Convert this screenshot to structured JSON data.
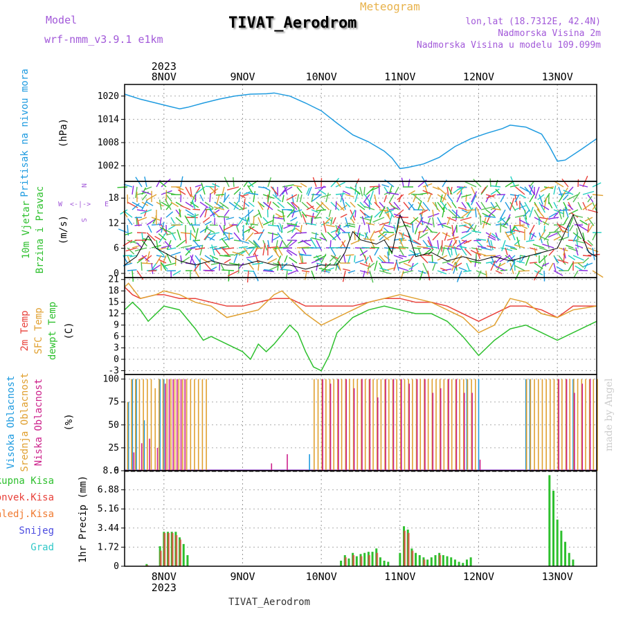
{
  "header": {
    "model_label": "Model",
    "model_name": "wrf-nmm_v3.9.1 e1km",
    "meteogram_label": "Meteogram",
    "station_title": "TIVAT_Aerodrom",
    "coords": "lon,lat (18.7312E, 42.4N)",
    "elevation": "Nadmorska Visina 2m",
    "model_elevation": "Nadmorska Visina u modelu 109.099m",
    "watermark": "made by Angel",
    "footer_station": "TIVAT_Aerodrom"
  },
  "colors": {
    "pressure": "#1e9be0",
    "temp2m": "#e8403a",
    "sfc": "#e0a030",
    "dew": "#2ec02e",
    "high_cloud": "#1e9be0",
    "mid_cloud": "#e0a030",
    "low_cloud": "#cc1f8a",
    "total_rain": "#2ec02e",
    "conv_rain": "#e8403a"
  },
  "chart_data": [
    {
      "type": "line",
      "id": "pressure",
      "ylabel": [
        "Pritisak na nivou mora",
        "(hPa)"
      ],
      "yticks": [
        "1020",
        "1014",
        "1008",
        "1002"
      ],
      "ylim": [
        998,
        1023
      ],
      "top_year": "2023",
      "x_ticks": [
        "8NOV",
        "9NOV",
        "10NOV",
        "11NOV",
        "12NOV",
        "13NOV"
      ],
      "x_days": [
        0,
        1,
        2,
        3,
        4,
        5
      ],
      "xlim": [
        -0.5,
        5.5
      ],
      "series": [
        {
          "x": [
            -0.5,
            -0.3,
            -0.1,
            0.1,
            0.2,
            0.3,
            0.5,
            0.7,
            0.9,
            1.1,
            1.3,
            1.4,
            1.6,
            1.8,
            2.0,
            2.2,
            2.4,
            2.6,
            2.8,
            2.9,
            3.0,
            3.1,
            3.3,
            3.5,
            3.7,
            3.9,
            4.1,
            4.3,
            4.4,
            4.6,
            4.8,
            4.9,
            5.0,
            5.1,
            5.3,
            5.5
          ],
          "y": [
            1020.5,
            1019.2,
            1018.2,
            1017.2,
            1016.7,
            1017.1,
            1018.2,
            1019.2,
            1020.0,
            1020.5,
            1020.6,
            1020.8,
            1020.0,
            1018.2,
            1016.2,
            1013.0,
            1010.0,
            1008.2,
            1005.8,
            1004.0,
            1001.3,
            1001.6,
            1002.5,
            1004.2,
            1007.0,
            1009.0,
            1010.4,
            1011.6,
            1012.5,
            1012.0,
            1010.2,
            1007.0,
            1003.2,
            1003.5,
            1006.2,
            1009.0
          ]
        }
      ]
    },
    {
      "type": "line",
      "id": "wind",
      "ylabel": [
        "10m Vjetar",
        "Brzina i Pravac",
        "(m/s)"
      ],
      "compass": {
        "n": "N",
        "s": "S",
        "w": "W",
        "e": "E"
      },
      "yticks": [
        "18",
        "12",
        "6",
        "0"
      ],
      "ylim": [
        -1,
        22
      ],
      "series": [
        {
          "name": "speed",
          "x": [
            -0.5,
            -0.35,
            -0.2,
            -0.1,
            0.0,
            0.2,
            0.4,
            0.6,
            0.8,
            1.0,
            1.2,
            1.4,
            1.6,
            1.8,
            2.0,
            2.2,
            2.3,
            2.4,
            2.5,
            2.7,
            2.8,
            2.9,
            3.0,
            3.1,
            3.2,
            3.4,
            3.6,
            3.8,
            4.0,
            4.2,
            4.4,
            4.6,
            4.8,
            5.0,
            5.2,
            5.4,
            5.5
          ],
          "y": [
            2,
            4,
            9,
            6,
            5,
            3,
            2,
            3,
            2,
            2,
            3,
            2,
            2,
            1,
            2,
            2,
            5,
            10,
            8,
            7,
            8,
            5,
            14,
            10,
            4,
            5,
            3,
            4,
            3,
            4,
            3,
            4,
            5,
            6,
            14,
            5,
            4
          ]
        }
      ]
    },
    {
      "type": "line",
      "id": "temperature",
      "ylabel": [
        "2m Temp",
        "SFC Temp",
        "dewpt Temp",
        "(C)"
      ],
      "yticks": [
        "21",
        "18",
        "15",
        "12",
        "9",
        "6",
        "3",
        "0",
        "-3"
      ],
      "ylim": [
        -4,
        21.5
      ],
      "series": [
        {
          "name": "2m Temp",
          "x": [
            -0.5,
            -0.4,
            -0.3,
            -0.1,
            0.0,
            0.2,
            0.4,
            0.6,
            0.8,
            1.0,
            1.2,
            1.4,
            1.6,
            1.8,
            2.0,
            2.2,
            2.4,
            2.6,
            2.8,
            3.0,
            3.2,
            3.4,
            3.6,
            3.8,
            4.0,
            4.2,
            4.4,
            4.6,
            4.8,
            5.0,
            5.2,
            5.5
          ],
          "y": [
            19,
            17,
            16,
            17,
            17,
            16,
            16,
            15,
            14,
            14,
            15,
            16,
            16,
            14,
            14,
            14,
            14,
            15,
            16,
            16,
            15,
            15,
            14,
            12,
            10,
            12,
            14,
            14,
            13,
            11,
            14,
            14
          ]
        },
        {
          "name": "SFC Temp",
          "x": [
            -0.5,
            -0.45,
            -0.3,
            -0.1,
            0.0,
            0.2,
            0.4,
            0.6,
            0.8,
            1.0,
            1.2,
            1.4,
            1.5,
            1.6,
            1.8,
            2.0,
            2.2,
            2.4,
            2.6,
            2.8,
            3.0,
            3.2,
            3.4,
            3.6,
            3.8,
            4.0,
            4.2,
            4.4,
            4.6,
            4.8,
            5.0,
            5.2,
            5.5
          ],
          "y": [
            19,
            20,
            16,
            17,
            18,
            17,
            15,
            14,
            11,
            12,
            13,
            17,
            18,
            16,
            12,
            9,
            11,
            13,
            15,
            16,
            17,
            16,
            15,
            13,
            11,
            7,
            9,
            16,
            15,
            12,
            11,
            13,
            14
          ]
        },
        {
          "name": "dewpt Temp",
          "x": [
            -0.5,
            -0.4,
            -0.3,
            -0.2,
            -0.1,
            0.0,
            0.2,
            0.4,
            0.5,
            0.6,
            0.8,
            1.0,
            1.1,
            1.2,
            1.3,
            1.4,
            1.6,
            1.7,
            1.8,
            1.9,
            2.0,
            2.1,
            2.2,
            2.4,
            2.6,
            2.8,
            3.0,
            3.2,
            3.4,
            3.6,
            3.8,
            4.0,
            4.2,
            4.4,
            4.6,
            4.8,
            5.0,
            5.2,
            5.5
          ],
          "y": [
            13,
            15,
            13,
            10,
            12,
            14,
            13,
            8,
            5,
            6,
            4,
            2,
            0,
            4,
            2,
            4,
            9,
            7,
            2,
            -2,
            -3,
            1,
            7,
            11,
            13,
            14,
            13,
            12,
            12,
            10,
            6,
            1,
            5,
            8,
            9,
            7,
            5,
            7,
            10
          ]
        }
      ]
    },
    {
      "type": "bar",
      "id": "clouds",
      "ylabel": [
        "Visoka Oblacnost",
        "Srednja Oblacnost",
        "Niska Oblacnost",
        "(%)"
      ],
      "yticks": [
        "100",
        "75",
        "50",
        "25",
        "0"
      ],
      "ylim": [
        0,
        105
      ],
      "series": [
        {
          "name": "Visoka Oblacnost",
          "x": [
            -0.45,
            -0.4,
            -0.35,
            -0.25,
            -0.05,
            0.0,
            1.85,
            3.85,
            4.0,
            4.6,
            4.65,
            5.2
          ],
          "y": [
            75,
            100,
            100,
            55,
            100,
            100,
            18,
            100,
            100,
            100,
            100,
            100
          ]
        },
        {
          "name": "Srednja Oblacnost",
          "x": [
            -0.47,
            -0.42,
            -0.37,
            -0.32,
            -0.27,
            -0.22,
            -0.17,
            -0.12,
            -0.07,
            -0.02,
            0.03,
            0.08,
            0.13,
            0.18,
            0.23,
            0.28,
            0.33,
            0.38,
            0.43,
            0.48,
            0.53,
            1.9,
            1.95,
            2.0,
            2.05,
            2.1,
            2.15,
            2.2,
            2.25,
            2.3,
            2.35,
            2.4,
            2.45,
            2.5,
            2.55,
            2.6,
            2.65,
            2.7,
            2.75,
            2.8,
            2.85,
            2.9,
            2.95,
            3.0,
            3.05,
            3.1,
            3.15,
            3.2,
            3.25,
            3.3,
            3.35,
            3.4,
            3.45,
            3.5,
            3.55,
            3.6,
            3.65,
            3.7,
            3.75,
            3.8,
            3.85,
            3.9,
            3.95,
            4.6,
            4.65,
            4.7,
            4.75,
            4.8,
            4.85,
            4.9,
            4.95,
            5.0,
            5.05,
            5.1,
            5.15,
            5.2,
            5.25,
            5.3,
            5.35,
            5.4,
            5.45,
            5.5
          ],
          "y": [
            75,
            100,
            100,
            100,
            100,
            100,
            100,
            90,
            100,
            100,
            100,
            100,
            100,
            100,
            100,
            100,
            100,
            100,
            100,
            100,
            100,
            100,
            100,
            100,
            100,
            100,
            100,
            100,
            100,
            100,
            100,
            100,
            100,
            100,
            100,
            100,
            100,
            100,
            100,
            100,
            100,
            100,
            100,
            100,
            100,
            100,
            100,
            100,
            100,
            100,
            100,
            100,
            100,
            100,
            100,
            100,
            100,
            100,
            100,
            100,
            100,
            100,
            100,
            100,
            100,
            100,
            100,
            100,
            100,
            100,
            100,
            100,
            100,
            100,
            100,
            100,
            100,
            100,
            100,
            100,
            100,
            100
          ]
        },
        {
          "name": "Niska Oblacnost",
          "x": [
            -0.4,
            -0.3,
            -0.2,
            -0.1,
            0.0,
            0.05,
            0.1,
            0.15,
            0.2,
            0.25,
            1.35,
            1.55,
            2.0,
            2.1,
            2.2,
            2.3,
            2.4,
            2.5,
            2.6,
            2.7,
            2.8,
            2.9,
            3.0,
            3.1,
            3.2,
            3.3,
            3.4,
            3.5,
            3.6,
            3.7,
            3.8,
            3.9,
            4.0,
            5.0,
            5.1,
            5.2,
            5.3,
            5.4
          ],
          "y": [
            20,
            30,
            35,
            25,
            95,
            100,
            100,
            100,
            100,
            100,
            8,
            18,
            100,
            95,
            100,
            100,
            90,
            100,
            100,
            80,
            100,
            100,
            100,
            95,
            100,
            100,
            85,
            90,
            100,
            100,
            85,
            85,
            12,
            100,
            100,
            85,
            95,
            100
          ]
        }
      ]
    },
    {
      "type": "bar",
      "id": "precip",
      "ylabel": [
        "1hr Precip (mm)"
      ],
      "legend": [
        "Ukupna Kisa",
        "Konvek.Kisa",
        "Zaledj.Kisa",
        "Snijeg",
        "Grad"
      ],
      "legend_colors": [
        "#2ec02e",
        "#e8403a",
        "#f07a30",
        "#4a4ae0",
        "#30c8c8"
      ],
      "yticks": [
        "8.6",
        "6.88",
        "5.16",
        "3.44",
        "1.72",
        "0"
      ],
      "ylim": [
        0,
        8.6
      ],
      "bottom_year": "2023",
      "series": [
        {
          "name": "Ukupna Kisa",
          "x": [
            -0.22,
            -0.05,
            0.0,
            0.05,
            0.1,
            0.15,
            0.2,
            0.25,
            0.3,
            2.25,
            2.3,
            2.35,
            2.4,
            2.45,
            2.5,
            2.55,
            2.6,
            2.65,
            2.7,
            2.75,
            2.8,
            2.85,
            3.0,
            3.05,
            3.1,
            3.15,
            3.2,
            3.25,
            3.3,
            3.35,
            3.4,
            3.45,
            3.5,
            3.55,
            3.6,
            3.65,
            3.7,
            3.75,
            3.8,
            3.85,
            3.9,
            4.9,
            4.95,
            5.0,
            5.05,
            5.1,
            5.15,
            5.2
          ],
          "y": [
            0.2,
            1.8,
            3.1,
            3.1,
            3.1,
            3.1,
            2.6,
            2.0,
            1.0,
            0.5,
            1.0,
            0.7,
            1.2,
            0.9,
            1.1,
            1.2,
            1.3,
            1.3,
            1.6,
            0.8,
            0.5,
            0.4,
            1.2,
            3.6,
            3.3,
            1.6,
            1.2,
            1.0,
            0.8,
            0.6,
            0.8,
            1.0,
            1.2,
            1.0,
            0.9,
            0.8,
            0.6,
            0.4,
            0.3,
            0.6,
            0.8,
            8.2,
            6.8,
            4.2,
            3.2,
            2.2,
            1.2,
            0.6
          ]
        },
        {
          "name": "Konvek.Kisa",
          "x": [
            -0.22,
            -0.05,
            0.0,
            0.05,
            0.1,
            0.15,
            0.2,
            2.3,
            2.4,
            2.5,
            2.6,
            2.7,
            3.05,
            3.1,
            3.15,
            3.3,
            3.5
          ],
          "y": [
            0.1,
            1.4,
            3.0,
            3.0,
            3.0,
            2.8,
            2.4,
            0.8,
            1.0,
            0.9,
            1.0,
            1.2,
            3.2,
            3.0,
            1.4,
            0.6,
            1.0
          ]
        }
      ]
    }
  ]
}
